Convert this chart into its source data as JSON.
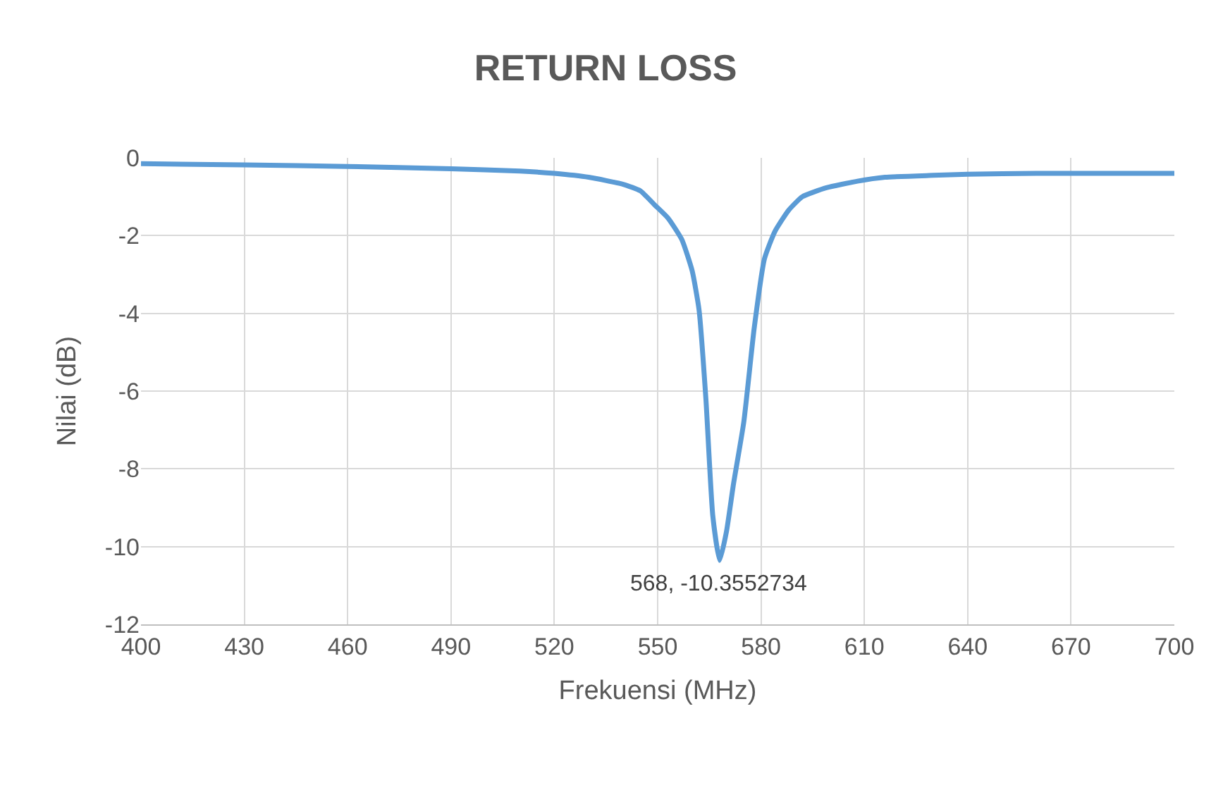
{
  "chart_data": {
    "type": "line",
    "title": "RETURN LOSS",
    "xlabel": "Frekuensi (MHz)",
    "ylabel": "Nilai (dB)",
    "x": [
      400,
      430,
      460,
      490,
      510,
      520,
      530,
      540,
      545,
      549,
      553,
      557,
      560,
      562,
      564,
      566,
      568,
      570,
      572,
      575,
      578,
      581,
      584,
      588,
      592,
      599,
      608,
      616,
      630,
      640,
      660,
      680,
      700
    ],
    "series": [
      {
        "color": "#5b9bd5",
        "values": [
          -0.15,
          -0.18,
          -0.22,
          -0.28,
          -0.34,
          -0.4,
          -0.5,
          -0.68,
          -0.85,
          -1.2,
          -1.55,
          -2.1,
          -2.9,
          -3.9,
          -6.2,
          -9.2,
          -10.3552734,
          -9.6,
          -8.4,
          -6.8,
          -4.4,
          -2.6,
          -1.9,
          -1.35,
          -1.0,
          -0.77,
          -0.6,
          -0.5,
          -0.45,
          -0.42,
          -0.4,
          -0.4,
          -0.4
        ]
      }
    ],
    "xlim": [
      400,
      700
    ],
    "xticks": [
      400,
      430,
      460,
      490,
      520,
      550,
      580,
      610,
      640,
      670,
      700
    ],
    "ylim": [
      -12,
      0
    ],
    "yticks": [
      -12,
      -10,
      -8,
      -6,
      -4,
      -2,
      0
    ],
    "grid": true,
    "marker": "none",
    "line_style": "solid",
    "annotations": [
      {
        "text": "568, -10.3552734",
        "x": 568,
        "y": -10.3552734
      }
    ]
  }
}
